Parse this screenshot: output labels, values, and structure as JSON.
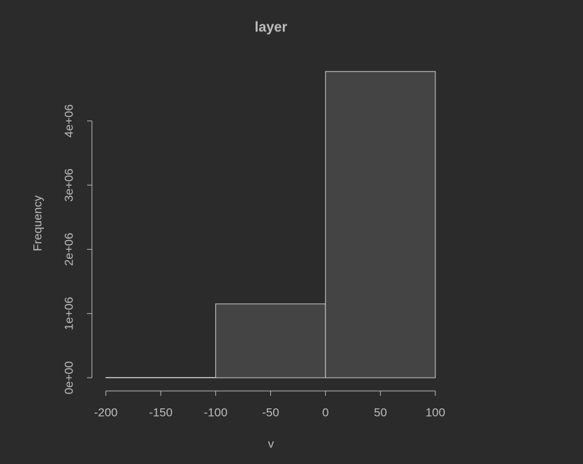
{
  "chart_data": {
    "type": "histogram",
    "title": "layer",
    "x_label": "v",
    "y_label": "Frequency",
    "bins": [
      -200,
      -100,
      0,
      100
    ],
    "counts": [
      5000,
      1150000,
      4770000
    ],
    "color": "#444444",
    "edge_color": "#d0d0d0",
    "xlim": [
      -200,
      100
    ],
    "xticks": [
      -200,
      -150,
      -100,
      -50,
      0,
      50,
      100
    ],
    "ylim": [
      0,
      4800000
    ],
    "yticks": [
      {
        "value": 0,
        "label": "0e+00"
      },
      {
        "value": 1000000,
        "label": "1e+06"
      },
      {
        "value": 2000000,
        "label": "2e+06"
      },
      {
        "value": 3000000,
        "label": "3e+06"
      },
      {
        "value": 4000000,
        "label": "4e+06"
      }
    ]
  }
}
